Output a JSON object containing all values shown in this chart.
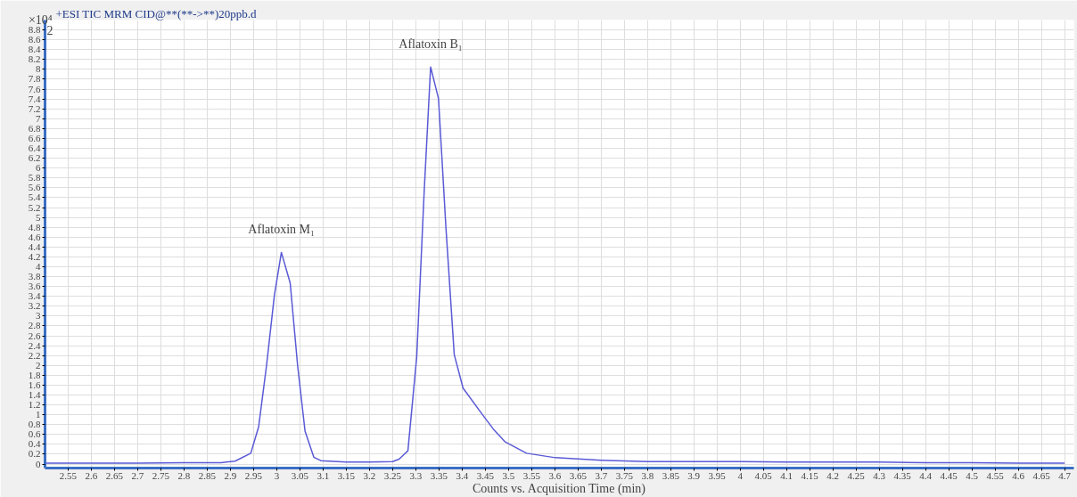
{
  "chart_data": {
    "type": "line",
    "title": "+ESI TIC MRM CID@**(**->**)20ppb.d",
    "xlabel": "Counts vs. Acquisition Time (min)",
    "ylabel": "×10⁴",
    "annotations": [
      "2",
      {
        "text": "Aflatoxin M₁",
        "x": 3.01,
        "y": 4.29
      },
      {
        "text": "Aflatoxin B₁",
        "x": 3.332,
        "y": 8.05
      }
    ],
    "x": [
      2.5,
      2.6,
      2.7,
      2.8,
      2.88,
      2.91,
      2.944,
      2.961,
      2.978,
      2.995,
      3.01,
      3.029,
      3.045,
      3.061,
      3.08,
      3.095,
      3.15,
      3.2,
      3.25,
      3.264,
      3.283,
      3.302,
      3.318,
      3.332,
      3.349,
      3.365,
      3.383,
      3.402,
      3.444,
      3.469,
      3.493,
      3.539,
      3.601,
      3.7,
      3.8,
      3.9,
      4.0,
      4.1,
      4.2,
      4.3,
      4.4,
      4.5,
      4.6,
      4.7
    ],
    "series": [
      {
        "color": "#5a5ad6",
        "values": [
          0.02,
          0.02,
          0.02,
          0.03,
          0.03,
          0.06,
          0.22,
          0.76,
          2.0,
          3.43,
          4.29,
          3.67,
          2.0,
          0.67,
          0.14,
          0.07,
          0.04,
          0.04,
          0.05,
          0.1,
          0.27,
          2.17,
          5.5,
          8.05,
          7.41,
          4.8,
          2.22,
          1.54,
          1.0,
          0.69,
          0.45,
          0.22,
          0.13,
          0.08,
          0.05,
          0.05,
          0.05,
          0.04,
          0.04,
          0.04,
          0.03,
          0.03,
          0.02,
          0.02
        ]
      }
    ],
    "xlim": [
      2.5,
      4.72
    ],
    "ylim": [
      -0.08,
      9.0
    ],
    "xticks": [
      2.55,
      2.6,
      2.65,
      2.7,
      2.75,
      2.8,
      2.85,
      2.9,
      2.95,
      3,
      3.05,
      3.1,
      3.15,
      3.2,
      3.25,
      3.3,
      3.35,
      3.4,
      3.45,
      3.5,
      3.55,
      3.6,
      3.65,
      3.7,
      3.75,
      3.8,
      3.85,
      3.9,
      3.95,
      4,
      4.05,
      4.1,
      4.15,
      4.2,
      4.25,
      4.3,
      4.35,
      4.4,
      4.45,
      4.5,
      4.55,
      4.6,
      4.65,
      4.7
    ],
    "yticks": [
      0,
      0.2,
      0.4,
      0.6,
      0.8,
      1,
      1.2,
      1.4,
      1.6,
      1.8,
      2,
      2.2,
      2.4,
      2.6,
      2.8,
      3,
      3.2,
      3.4,
      3.6,
      3.8,
      4,
      4.2,
      4.4,
      4.6,
      4.8,
      5,
      5.2,
      5.4,
      5.6,
      5.8,
      6,
      6.2,
      6.4,
      6.6,
      6.8,
      7,
      7.2,
      7.4,
      7.6,
      7.8,
      8,
      8.2,
      8.4,
      8.6,
      8.8
    ],
    "grid": true,
    "marker": "none",
    "line_style": "solid"
  }
}
